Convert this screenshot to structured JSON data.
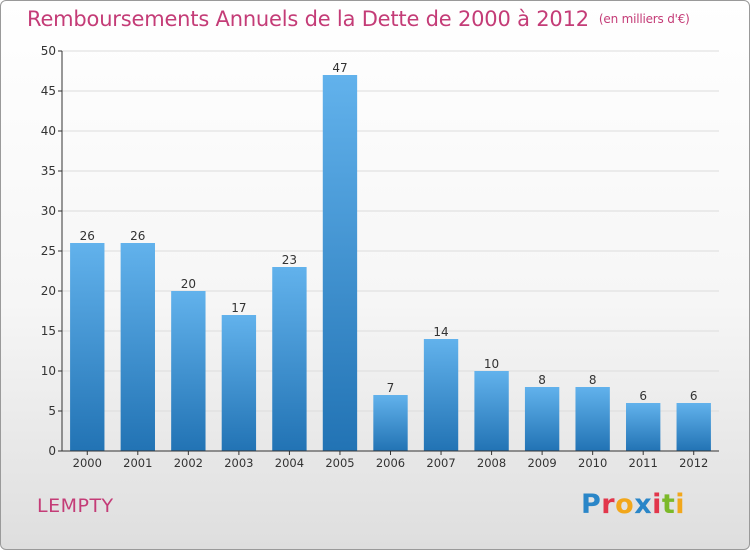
{
  "header": {
    "title": "Remboursements Annuels de la Dette de 2000 à 2012",
    "unit": "(en milliers d'€)"
  },
  "footer": {
    "commune": "LEMPTY",
    "brand": "Proxiti",
    "brand_colors": [
      "#2a86c8",
      "#e2364b",
      "#f2a71b",
      "#2a86c8",
      "#e2364b",
      "#7cb929",
      "#f2a71b"
    ]
  },
  "colors": {
    "bar_top": "#62b2ec",
    "bar_bottom": "#2273b4",
    "title": "#c43c77",
    "grid": "#dcdcdc",
    "axis": "#333333",
    "text": "#333333"
  },
  "chart_data": {
    "type": "bar",
    "title": "Remboursements Annuels de la Dette de 2000 à 2012",
    "xlabel": "",
    "ylabel": "",
    "categories": [
      "2000",
      "2001",
      "2002",
      "2003",
      "2004",
      "2005",
      "2006",
      "2007",
      "2008",
      "2009",
      "2010",
      "2011",
      "2012"
    ],
    "values": [
      26,
      26,
      20,
      17,
      23,
      47,
      7,
      14,
      10,
      8,
      8,
      6,
      6
    ],
    "ylim": [
      0,
      50
    ],
    "yticks": [
      0,
      5,
      10,
      15,
      20,
      25,
      30,
      35,
      40,
      45,
      50
    ],
    "grid": true,
    "data_labels": true
  }
}
